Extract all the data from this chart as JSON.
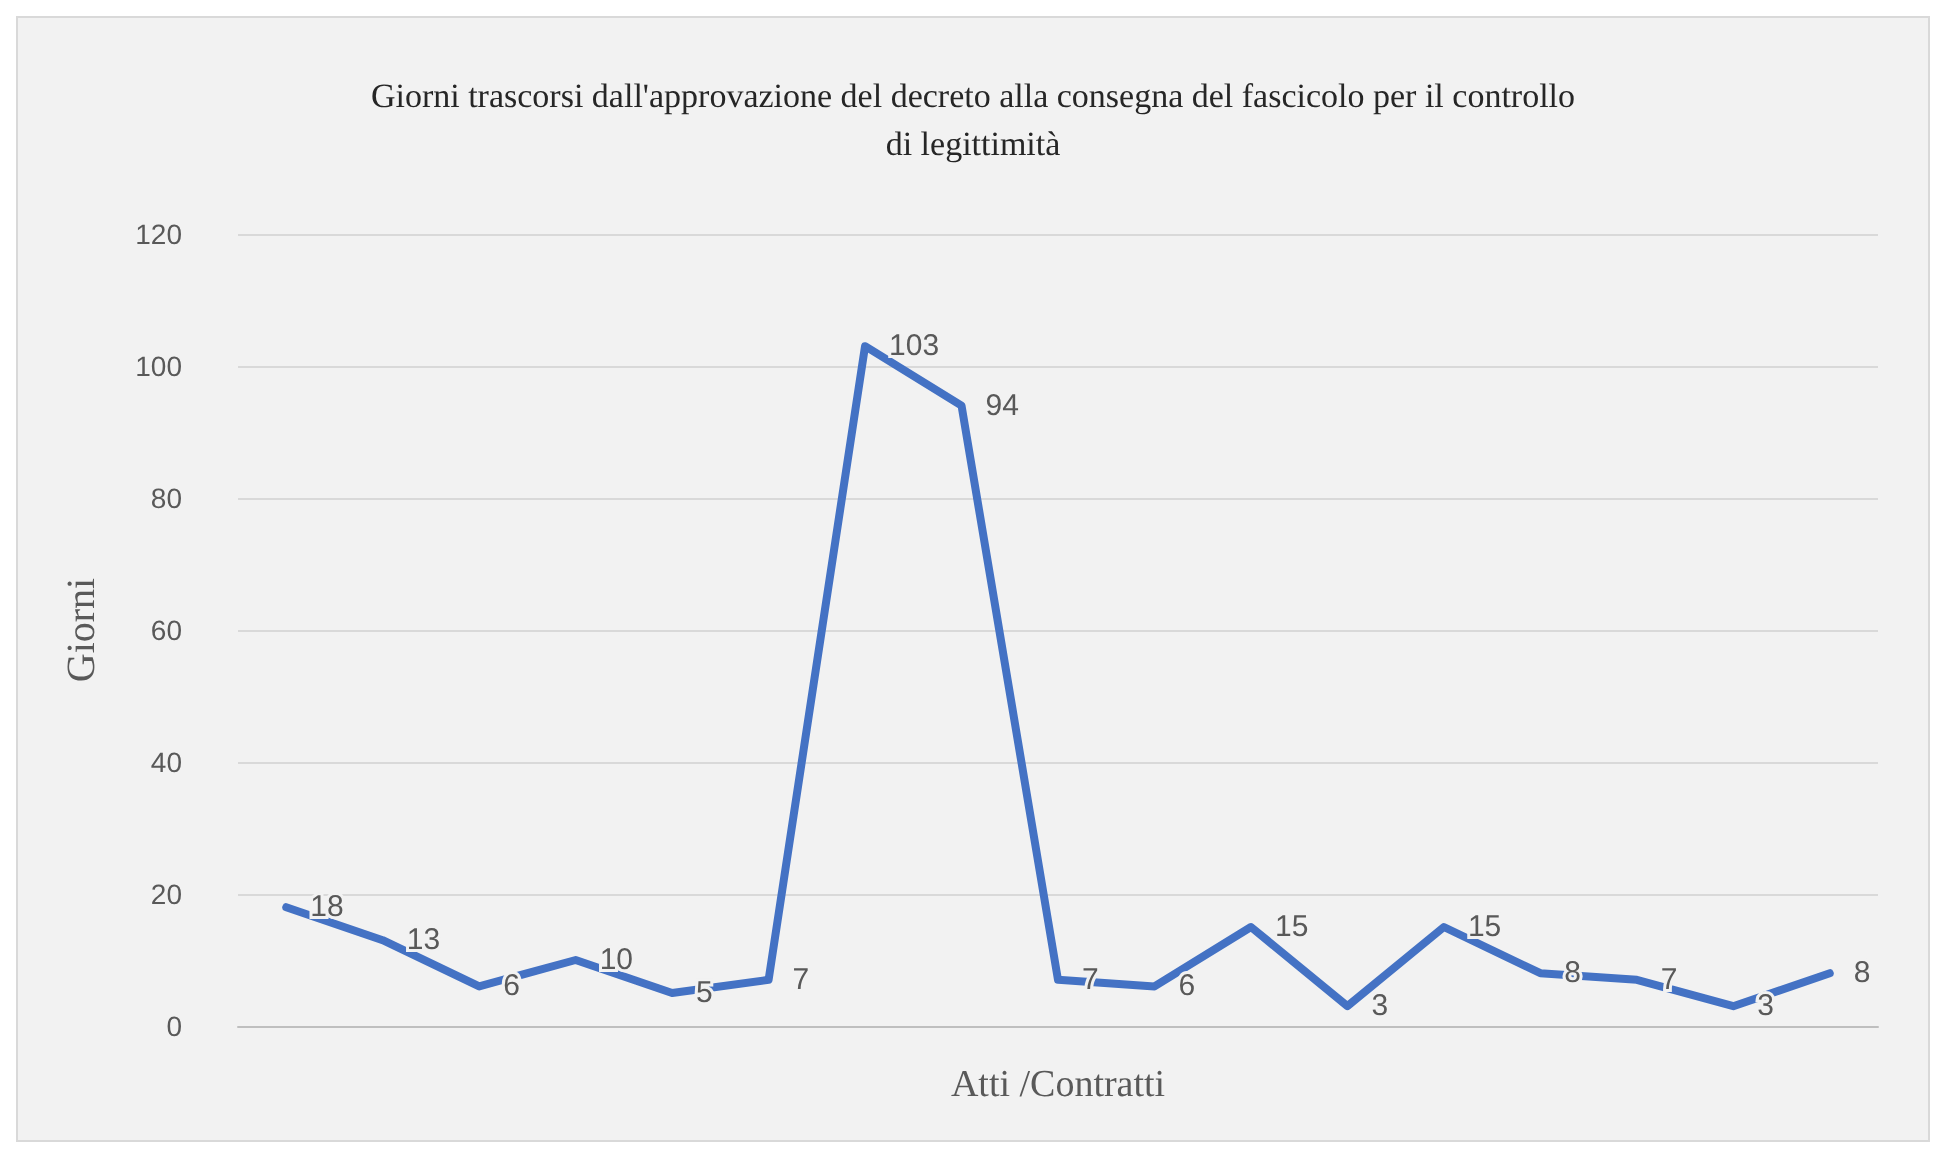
{
  "chart_data": {
    "type": "line",
    "title": "Giorni trascorsi dall'approvazione del decreto alla consegna del fascicolo per il controllo\ndi legittimità",
    "xlabel": "Atti /Contratti",
    "ylabel": "Giorni",
    "categories": [
      null,
      null,
      null,
      null,
      null,
      null,
      null,
      null,
      null,
      null,
      null,
      null,
      null,
      null,
      null,
      null,
      null
    ],
    "series": [
      {
        "color": "#4472c4",
        "values": [
          18,
          13,
          6,
          10,
          5,
          7,
          103,
          94,
          7,
          6,
          15,
          3,
          15,
          8,
          7,
          3,
          8
        ]
      }
    ],
    "ylim": [
      0,
      120
    ],
    "yticks": [
      0,
      20,
      40,
      60,
      80,
      100,
      120
    ],
    "grid": "y",
    "data_labels": true,
    "marker": "none",
    "line_style": "solid"
  }
}
